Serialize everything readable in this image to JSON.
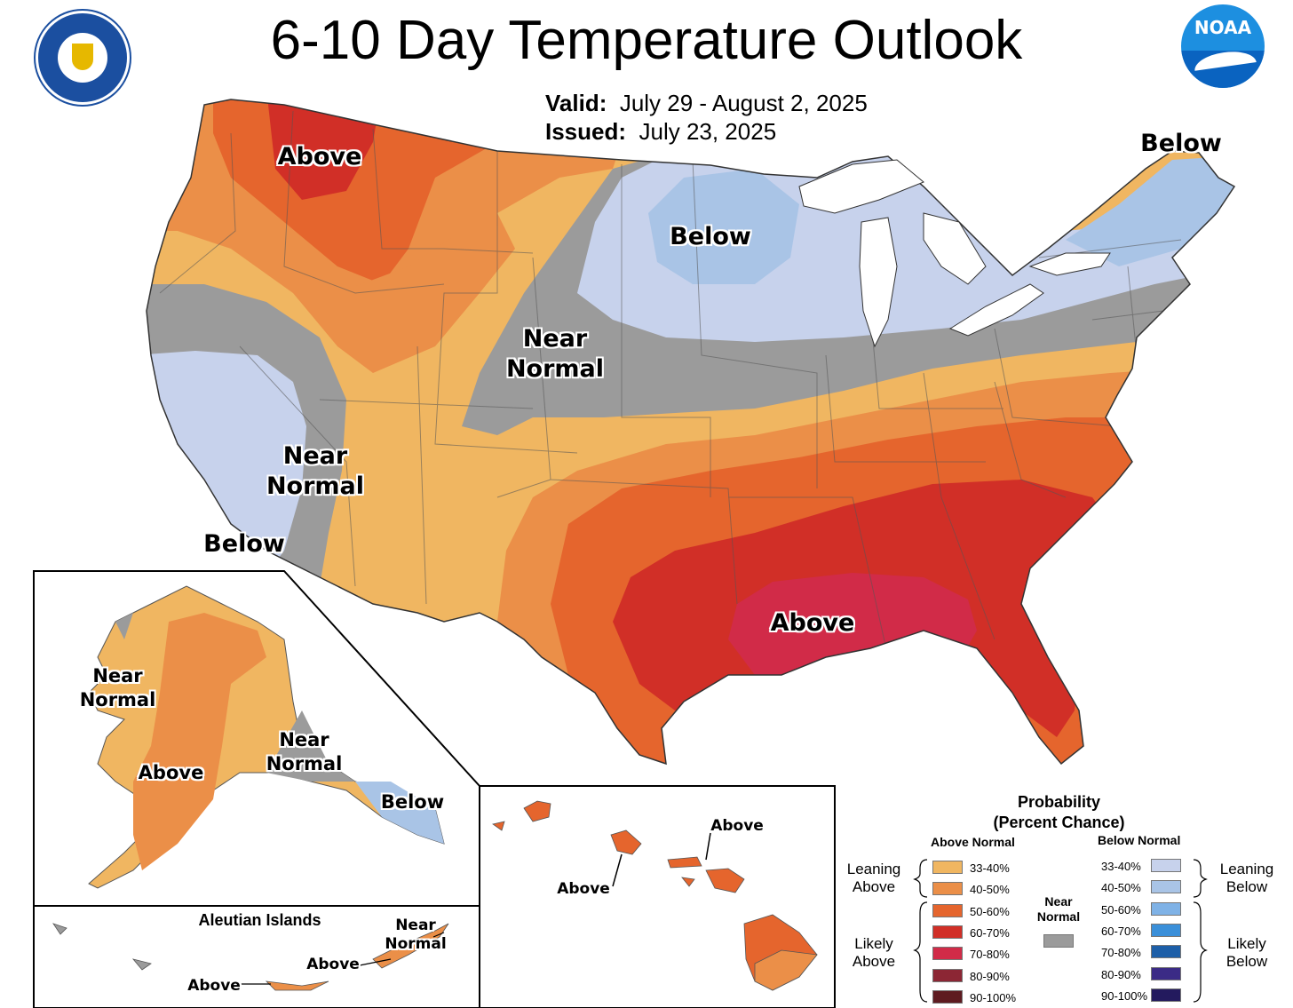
{
  "header": {
    "title": "6-10 Day Temperature Outlook",
    "valid_label": "Valid:",
    "valid_value": "July 29 - August 2, 2025",
    "issued_label": "Issued:",
    "issued_value": "July 23, 2025"
  },
  "logos": {
    "left": "department-of-commerce-seal",
    "right": "noaa-logo",
    "right_text": "NOAA"
  },
  "map_labels": {
    "northwest": "Above",
    "northeast": "Below",
    "great_lakes": "Below",
    "plains_line1": "Near",
    "plains_line2": "Normal",
    "california_line1": "Near",
    "california_line2": "Normal",
    "southern_california": "Below",
    "southeast": "Above"
  },
  "alaska_labels": {
    "west_line1": "Near",
    "west_line2": "Normal",
    "central": "Above",
    "south_line1": "Near",
    "south_line2": "Normal",
    "southeast": "Below"
  },
  "aleutian": {
    "title": "Aleutian Islands",
    "near_line1": "Near",
    "near_line2": "Normal",
    "above_east": "Above",
    "above_west": "Above"
  },
  "hawaii_labels": {
    "north": "Above",
    "west": "Above"
  },
  "legend": {
    "title_line1": "Probability",
    "title_line2": "(Percent Chance)",
    "above_header": "Above Normal",
    "below_header": "Below Normal",
    "near_line1": "Near",
    "near_line2": "Normal",
    "leaning_above_line1": "Leaning",
    "leaning_above_line2": "Above",
    "likely_above_line1": "Likely",
    "likely_above_line2": "Above",
    "leaning_below_line1": "Leaning",
    "leaning_below_line2": "Below",
    "likely_below_line1": "Likely",
    "likely_below_line2": "Below",
    "above_bins": [
      {
        "range": "33-40%",
        "color": "#f0b661"
      },
      {
        "range": "40-50%",
        "color": "#eb8f48"
      },
      {
        "range": "50-60%",
        "color": "#e5652d"
      },
      {
        "range": "60-70%",
        "color": "#d12f27"
      },
      {
        "range": "70-80%",
        "color": "#d12b48"
      },
      {
        "range": "80-90%",
        "color": "#8c2634"
      },
      {
        "range": "90-100%",
        "color": "#5e1b20"
      }
    ],
    "below_bins": [
      {
        "range": "33-40%",
        "color": "#c7d2ec"
      },
      {
        "range": "40-50%",
        "color": "#a9c4e6"
      },
      {
        "range": "50-60%",
        "color": "#7fb2e6"
      },
      {
        "range": "60-70%",
        "color": "#3a8fd9"
      },
      {
        "range": "70-80%",
        "color": "#1d5fa8"
      },
      {
        "range": "80-90%",
        "color": "#3b2b86"
      },
      {
        "range": "90-100%",
        "color": "#231a5e"
      }
    ],
    "near_color": "#9b9b9b"
  }
}
